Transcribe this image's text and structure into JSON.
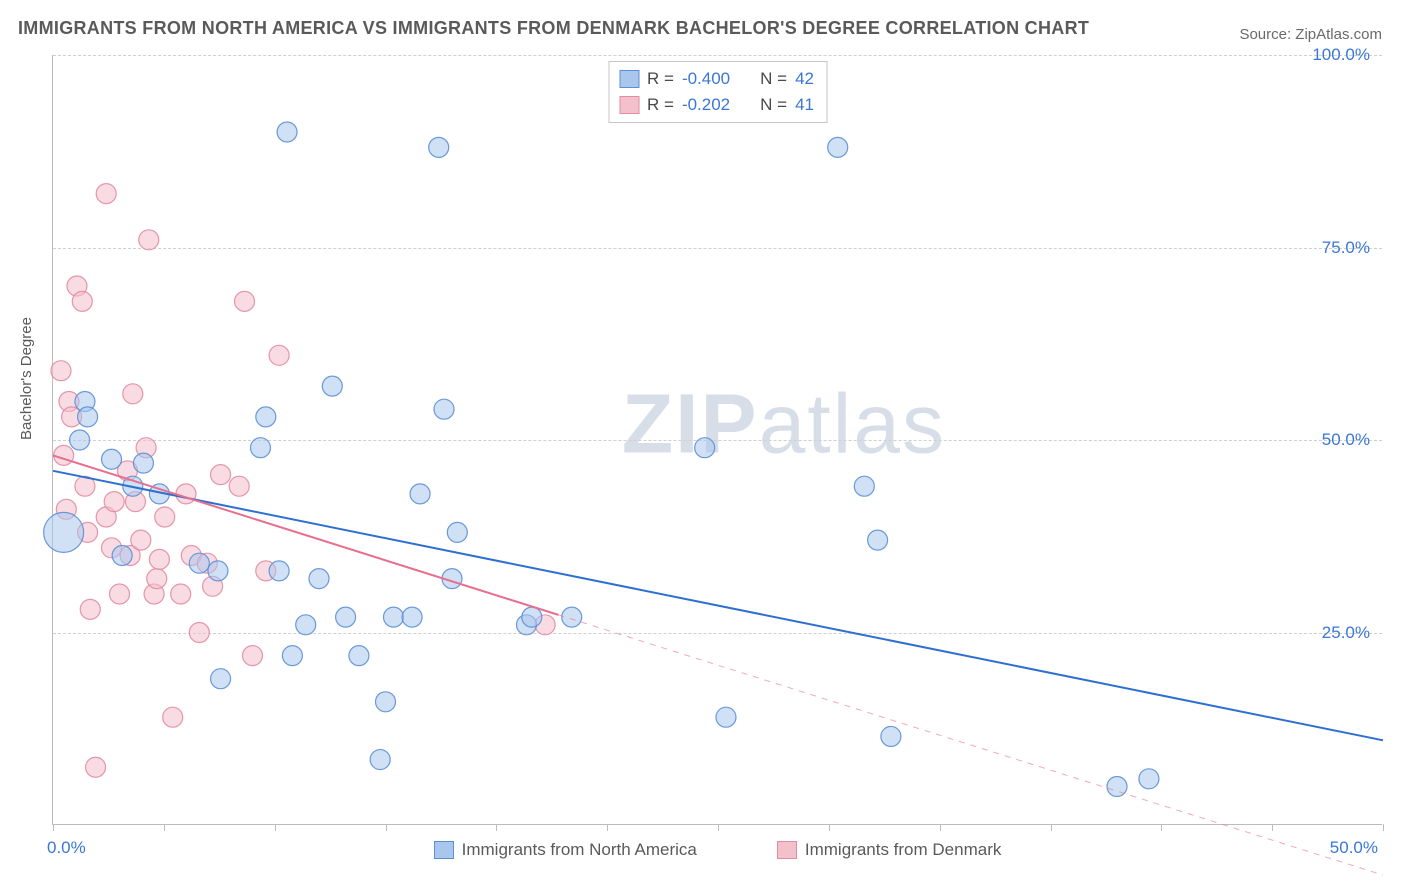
{
  "title": "IMMIGRANTS FROM NORTH AMERICA VS IMMIGRANTS FROM DENMARK BACHELOR'S DEGREE CORRELATION CHART",
  "source": "Source: ZipAtlas.com",
  "watermark": "ZIPatlas",
  "ylabel": "Bachelor's Degree",
  "chart": {
    "type": "scatter",
    "xlim": [
      0,
      50
    ],
    "ylim": [
      0,
      100
    ],
    "x_ticks": [
      0,
      4.17,
      8.33,
      12.5,
      16.67,
      20.83,
      25,
      29.17,
      33.33,
      37.5,
      41.67,
      45.83,
      50
    ],
    "x_tick_labels": {
      "left": "0.0%",
      "right": "50.0%"
    },
    "y_grid": [
      25,
      50,
      75,
      100
    ],
    "y_tick_labels": [
      "25.0%",
      "50.0%",
      "75.0%",
      "100.0%"
    ],
    "background_color": "#ffffff",
    "grid_color": "#d0d0d0",
    "axis_color": "#bcbcbc",
    "tick_label_color": "#3a77d6",
    "tick_label_fontsize": 17,
    "title_color": "#5a5a5a",
    "title_fontsize": 18,
    "ylabel_fontsize": 15,
    "point_radius": 10,
    "point_opacity": 0.55,
    "point_stroke_opacity": 0.9,
    "line_width": 2
  },
  "series": [
    {
      "name": "Immigrants from North America",
      "fill_color": "#a9c7ec",
      "stroke_color": "#5a8fd6",
      "line_color": "#2e6fd1",
      "R": "-0.400",
      "N": "42",
      "trend": {
        "x1": 0,
        "y1": 46,
        "x2": 50,
        "y2": 11,
        "dash_from_x": null
      },
      "points": [
        {
          "x": 0.4,
          "y": 38,
          "r": 20
        },
        {
          "x": 1.0,
          "y": 50
        },
        {
          "x": 1.2,
          "y": 55
        },
        {
          "x": 1.3,
          "y": 53
        },
        {
          "x": 2.2,
          "y": 47.5
        },
        {
          "x": 2.6,
          "y": 35
        },
        {
          "x": 3.0,
          "y": 44
        },
        {
          "x": 3.4,
          "y": 47
        },
        {
          "x": 4.0,
          "y": 43
        },
        {
          "x": 5.5,
          "y": 34
        },
        {
          "x": 6.2,
          "y": 33
        },
        {
          "x": 6.3,
          "y": 19
        },
        {
          "x": 7.8,
          "y": 49
        },
        {
          "x": 8.0,
          "y": 53
        },
        {
          "x": 8.5,
          "y": 33
        },
        {
          "x": 8.8,
          "y": 90
        },
        {
          "x": 9.0,
          "y": 22
        },
        {
          "x": 9.5,
          "y": 26
        },
        {
          "x": 10.0,
          "y": 32
        },
        {
          "x": 10.5,
          "y": 57
        },
        {
          "x": 11.0,
          "y": 27
        },
        {
          "x": 11.5,
          "y": 22
        },
        {
          "x": 12.3,
          "y": 8.5
        },
        {
          "x": 12.5,
          "y": 16
        },
        {
          "x": 12.8,
          "y": 27
        },
        {
          "x": 13.5,
          "y": 27
        },
        {
          "x": 13.8,
          "y": 43
        },
        {
          "x": 14.5,
          "y": 88
        },
        {
          "x": 14.7,
          "y": 54
        },
        {
          "x": 15.0,
          "y": 32
        },
        {
          "x": 15.2,
          "y": 38
        },
        {
          "x": 17.8,
          "y": 26
        },
        {
          "x": 18.0,
          "y": 27
        },
        {
          "x": 19.5,
          "y": 27
        },
        {
          "x": 24.5,
          "y": 49
        },
        {
          "x": 25.3,
          "y": 14
        },
        {
          "x": 29.5,
          "y": 88
        },
        {
          "x": 30.5,
          "y": 44
        },
        {
          "x": 31.0,
          "y": 37
        },
        {
          "x": 31.5,
          "y": 11.5
        },
        {
          "x": 40.0,
          "y": 5
        },
        {
          "x": 41.2,
          "y": 6
        }
      ]
    },
    {
      "name": "Immigrants from Denmark",
      "fill_color": "#f4c0cc",
      "stroke_color": "#e28ba2",
      "line_color": "#e76f8d",
      "R": "-0.202",
      "N": "41",
      "trend": {
        "x1": 0,
        "y1": 48,
        "x2": 50,
        "y2": -6.5,
        "dash_from_x": 19
      },
      "points": [
        {
          "x": 0.3,
          "y": 59
        },
        {
          "x": 0.4,
          "y": 48
        },
        {
          "x": 0.5,
          "y": 41
        },
        {
          "x": 0.6,
          "y": 55
        },
        {
          "x": 0.7,
          "y": 53
        },
        {
          "x": 0.9,
          "y": 70
        },
        {
          "x": 1.1,
          "y": 68
        },
        {
          "x": 1.2,
          "y": 44
        },
        {
          "x": 1.3,
          "y": 38
        },
        {
          "x": 1.4,
          "y": 28
        },
        {
          "x": 1.6,
          "y": 7.5
        },
        {
          "x": 2.0,
          "y": 82
        },
        {
          "x": 2.0,
          "y": 40
        },
        {
          "x": 2.2,
          "y": 36
        },
        {
          "x": 2.3,
          "y": 42
        },
        {
          "x": 2.5,
          "y": 30
        },
        {
          "x": 2.8,
          "y": 46
        },
        {
          "x": 2.9,
          "y": 35
        },
        {
          "x": 3.0,
          "y": 56
        },
        {
          "x": 3.1,
          "y": 42
        },
        {
          "x": 3.3,
          "y": 37
        },
        {
          "x": 3.5,
          "y": 49
        },
        {
          "x": 3.6,
          "y": 76
        },
        {
          "x": 3.8,
          "y": 30
        },
        {
          "x": 3.9,
          "y": 32
        },
        {
          "x": 4.0,
          "y": 34.5
        },
        {
          "x": 4.2,
          "y": 40
        },
        {
          "x": 4.5,
          "y": 14
        },
        {
          "x": 4.8,
          "y": 30
        },
        {
          "x": 5.0,
          "y": 43
        },
        {
          "x": 5.2,
          "y": 35
        },
        {
          "x": 5.5,
          "y": 25
        },
        {
          "x": 5.8,
          "y": 34
        },
        {
          "x": 6.0,
          "y": 31
        },
        {
          "x": 6.3,
          "y": 45.5
        },
        {
          "x": 7.0,
          "y": 44
        },
        {
          "x": 7.2,
          "y": 68
        },
        {
          "x": 7.5,
          "y": 22
        },
        {
          "x": 8.0,
          "y": 33
        },
        {
          "x": 8.5,
          "y": 61
        },
        {
          "x": 18.5,
          "y": 26
        }
      ]
    }
  ],
  "legend_labels": {
    "R": "R =",
    "N": "N ="
  },
  "bottom_legend": [
    "Immigrants from North America",
    "Immigrants from Denmark"
  ]
}
